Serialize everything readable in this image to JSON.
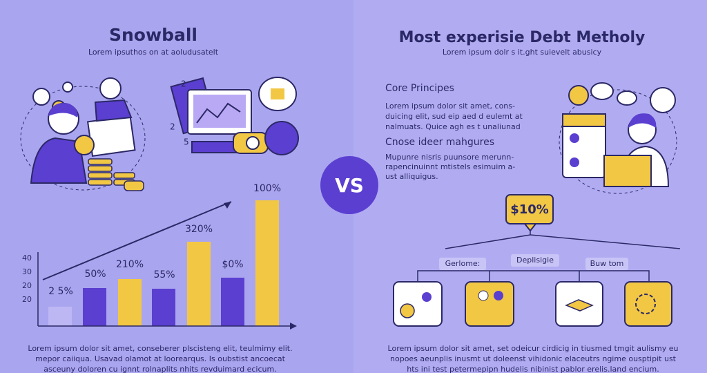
{
  "left": {
    "title": "Snowball",
    "subtitle": "Lorem ipsuthos on at aoludusatelt",
    "icon_numbers": [
      "2",
      "2",
      "5"
    ],
    "chart": {
      "y_axis": [
        "40",
        "30",
        "20",
        "20"
      ],
      "bar_labels": [
        "2 5%",
        "50%",
        "210%",
        "55%",
        "320%",
        "$0%",
        "100%"
      ]
    },
    "footer": [
      "Lorem ipsum dolor sit amet, conseberer plscisteng elit, teulmimy elit.",
      "mepor caiiqua. Usavad olamot at loorearqus. Is oubstist ancoecat",
      "asceuny doloren cu ignnt rolnaplits nhits revduimard ecicum."
    ]
  },
  "center": {
    "vs": "VS"
  },
  "right": {
    "title": "Most experisie Debt Metholy",
    "subtitle": "Lorem ipsum dolr s it.ght suievelt abusicy",
    "sections": [
      {
        "heading": "Core Principes",
        "lines": [
          "Lorem ipsum dolor sit amet, cons-",
          "duicing elit, sud eip aed d eulemt at",
          "nalmuats. Quice agh es t unaliunad"
        ]
      },
      {
        "heading": "Cnose ideer mahgures",
        "lines": [
          "Mupunre nisris puunsore merunn-",
          "rapencinuinnt mtistels esimuim a-",
          "ust alliquigus."
        ]
      }
    ],
    "callout": "$10%",
    "branches": [
      "Gerlome:",
      "Deplisigie",
      "Buw tom"
    ],
    "footer": [
      "Lorem ipsum dolor sit amet, set odeicur cirdicig in tiusmed tmgit aulismy eu",
      "nopoes aeunplis inusmt ut doleenst vihidonic elaceutrs ngime ousptipit ust",
      "hts ini test petermepipn hudelis nibinist pablor erelis.land encium."
    ]
  }
}
